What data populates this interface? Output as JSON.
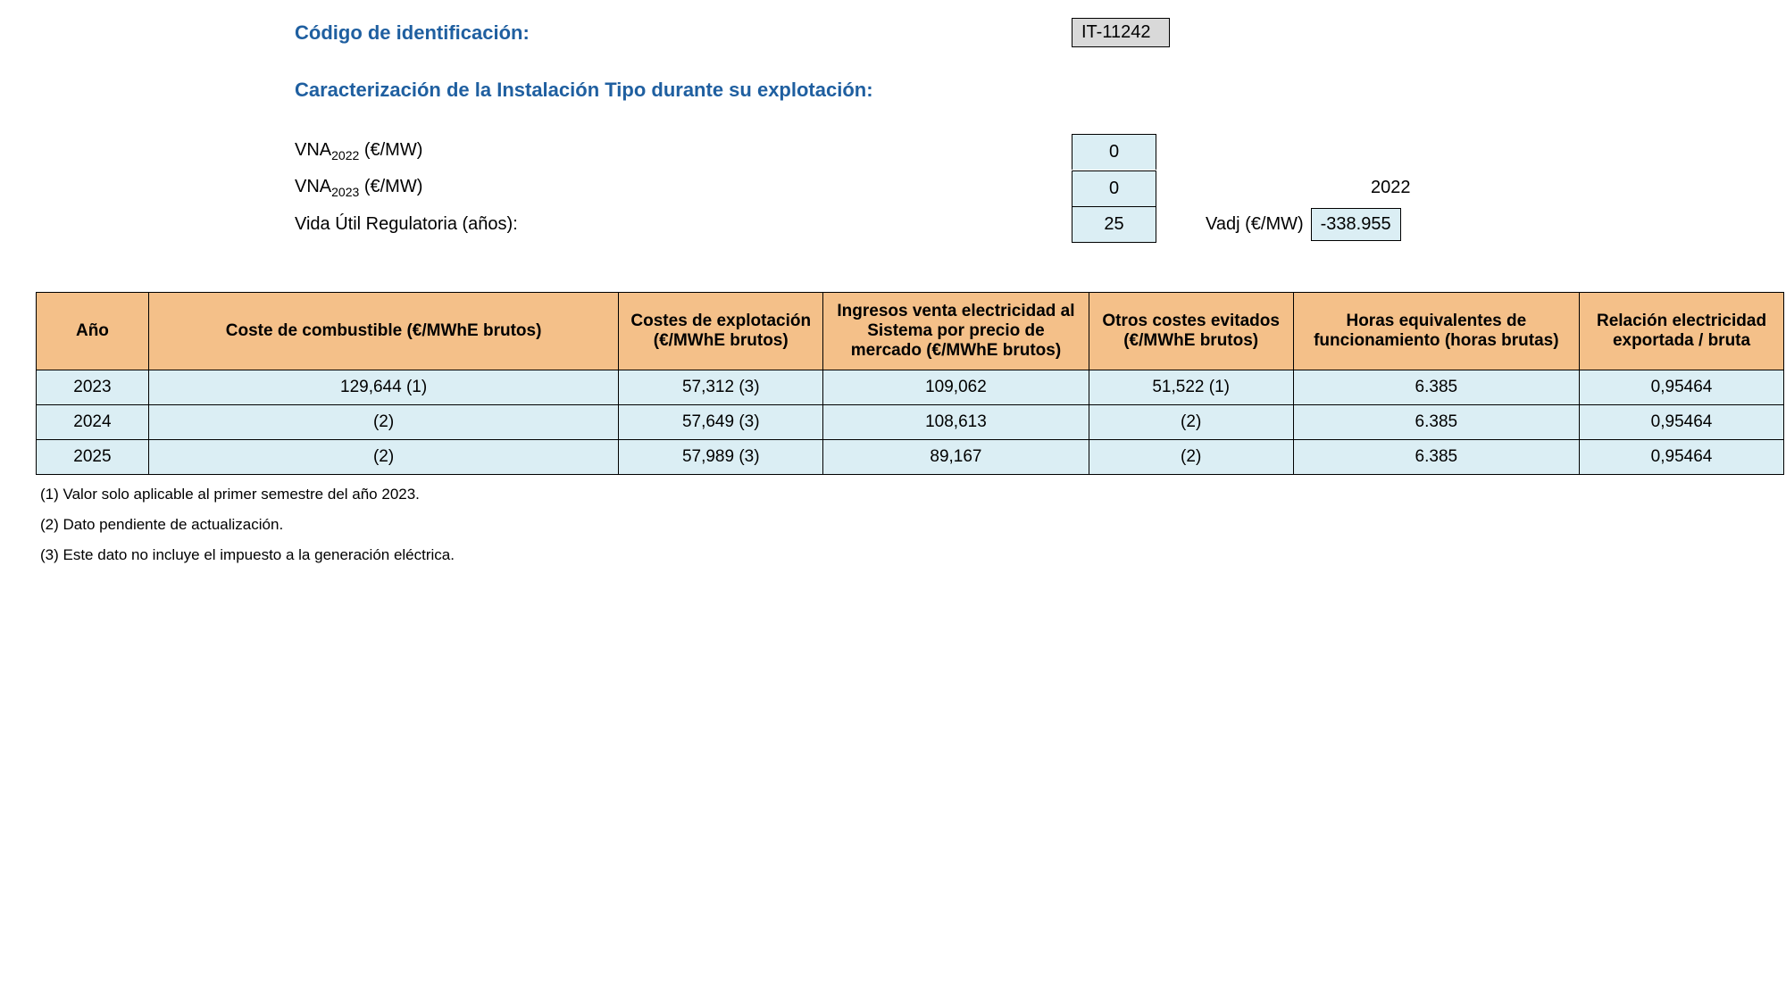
{
  "header": {
    "id_label": "Código de identificación:",
    "id_value": "IT-11242"
  },
  "characterization": {
    "title": "Caracterización de la Instalación Tipo durante su explotación:",
    "vna_2022_label_pre": "VNA",
    "vna_2022_label_sub": "2022",
    "vna_2022_label_post": " (€/MW)",
    "vna_2022_value": "0",
    "vna_2023_label_pre": "VNA",
    "vna_2023_label_sub": "2023",
    "vna_2023_label_post": " (€/MW)",
    "vna_2023_value": "0",
    "year_ref": "2022",
    "vida_label": "Vida Útil Regulatoria (años):",
    "vida_value": "25",
    "vadj_label": "Vadj (€/MW)",
    "vadj_value": "-338.955"
  },
  "table": {
    "headers": {
      "ano": "Año",
      "combustible": "Coste de combustible (€/MWhE brutos)",
      "explotacion": "Costes de explotación (€/MWhE brutos)",
      "ingresos": "Ingresos venta electricidad al Sistema por precio de mercado (€/MWhE brutos)",
      "otros": "Otros costes evitados (€/MWhE brutos)",
      "horas": "Horas equivalentes de funcionamiento (horas brutas)",
      "relacion": "Relación electricidad exportada / bruta"
    },
    "rows": [
      {
        "ano": "2023",
        "combustible": "129,644 (1)",
        "explotacion": "57,312 (3)",
        "ingresos": "109,062",
        "otros": "51,522 (1)",
        "horas": "6.385",
        "relacion": "0,95464"
      },
      {
        "ano": "2024",
        "combustible": "(2)",
        "explotacion": "57,649 (3)",
        "ingresos": "108,613",
        "otros": "(2)",
        "horas": "6.385",
        "relacion": "0,95464"
      },
      {
        "ano": "2025",
        "combustible": "(2)",
        "explotacion": "57,989 (3)",
        "ingresos": "89,167",
        "otros": "(2)",
        "horas": "6.385",
        "relacion": "0,95464"
      }
    ]
  },
  "footnotes": {
    "note1": "(1) Valor solo aplicable al primer semestre del año 2023.",
    "note2": "(2) Dato pendiente de actualización.",
    "note3": "(3) Este dato no incluye el impuesto a la generación eléctrica."
  },
  "colors": {
    "header_bg": "#f4c089",
    "cell_bg": "#dbeef4",
    "id_bg": "#d9d9d9",
    "title_color": "#1f5fa0",
    "border": "#000000"
  }
}
